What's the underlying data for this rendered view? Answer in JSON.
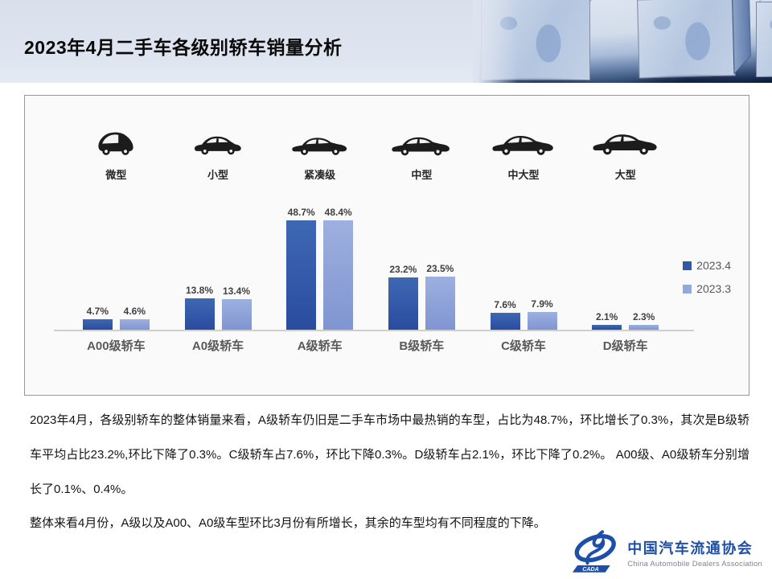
{
  "header": {
    "title": "2023年4月二手车各级别轿车销量分析"
  },
  "chart": {
    "legend": [
      {
        "label": "2023.4",
        "color": "#2E5AA8"
      },
      {
        "label": "2023.3",
        "color": "#8FAADC"
      }
    ],
    "car_classes": [
      {
        "label": "微型",
        "icon": "micro-car-icon"
      },
      {
        "label": "小型",
        "icon": "hatchback-car-icon"
      },
      {
        "label": "紧凑级",
        "icon": "compact-sedan-icon"
      },
      {
        "label": "中型",
        "icon": "midsize-sedan-icon"
      },
      {
        "label": "中大型",
        "icon": "mid-large-sedan-icon"
      },
      {
        "label": "大型",
        "icon": "large-sedan-icon"
      }
    ]
  },
  "chart_data": {
    "type": "bar",
    "title": "",
    "xlabel": "",
    "ylabel": "",
    "categories": [
      "A00级轿车",
      "A0级轿车",
      "A级轿车",
      "B级轿车",
      "C级轿车",
      "D级轿车"
    ],
    "series": [
      {
        "name": "2023.4",
        "values": [
          4.7,
          13.8,
          48.7,
          23.2,
          7.6,
          2.1
        ],
        "labels": [
          "4.7%",
          "13.8%",
          "48.7%",
          "23.2%",
          "7.6%",
          "2.1%"
        ],
        "color_top": "#3E68B3",
        "color_bottom": "#2A4C9F"
      },
      {
        "name": "2023.3",
        "values": [
          4.6,
          13.4,
          48.4,
          23.5,
          7.9,
          2.3
        ],
        "labels": [
          "4.6%",
          "13.4%",
          "48.4%",
          "23.5%",
          "7.9%",
          "2.3%"
        ],
        "color_top": "#9DB0DF",
        "color_bottom": "#8095D1"
      }
    ],
    "ylim": [
      0,
      55
    ],
    "grid": false,
    "legend_position": "right"
  },
  "body_text": {
    "paragraph1": "2023年4月，各级别轿车的整体销量来看，A级轿车仍旧是二手车市场中最热销的车型，占比为48.7%，环比增长了0.3%，其次是B级轿车平均占比23.2%,环比下降了0.3%。C级轿车占7.6%，环比下降0.3%。D级轿车占2.1%，环比下降了0.2%。  A00级、A0级轿车分别增长了0.1%、0.4%。",
    "paragraph2": "整体来看4月份，A级以及A00、A0级车型环比3月份有所增长，其余的车型均有不同程度的下降。"
  },
  "logo": {
    "emblem": "CADA",
    "name_cn": "中国汽车流通协会",
    "name_en": "China Automobile Dealers Association",
    "color": "#1E4FA8"
  }
}
